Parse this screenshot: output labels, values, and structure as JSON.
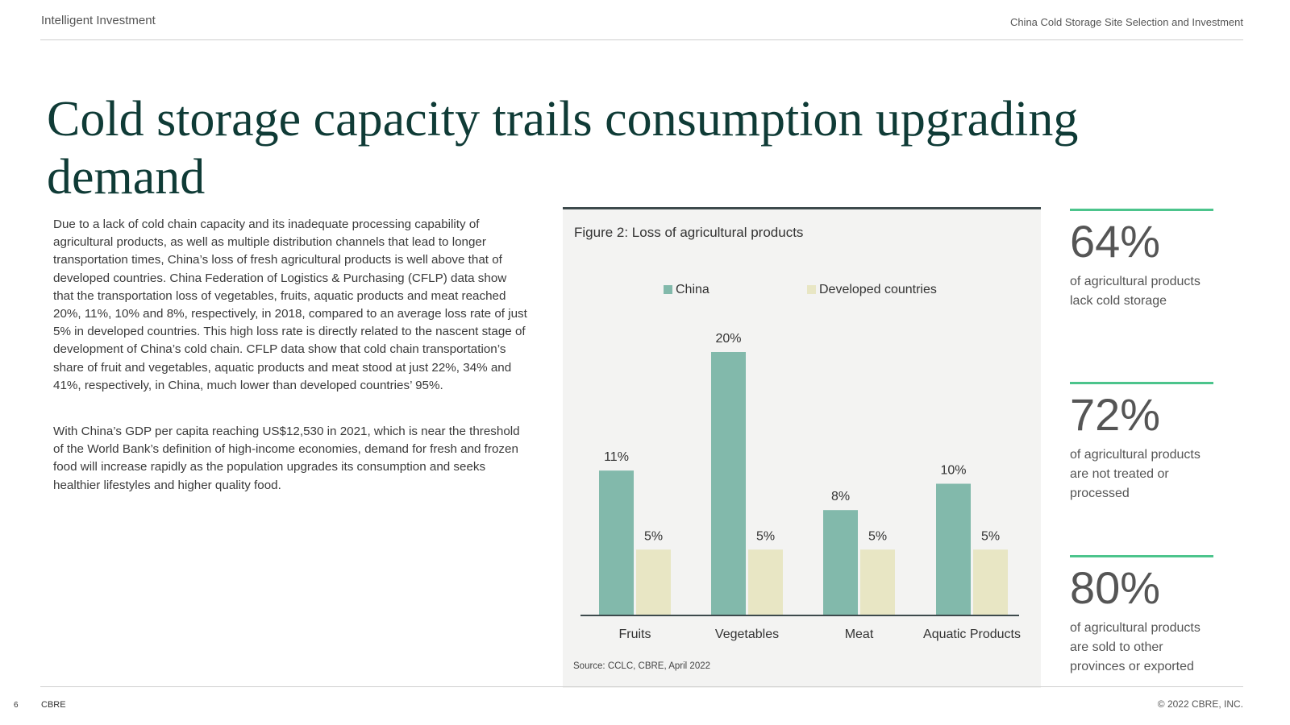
{
  "header": {
    "brand": "Intelligent Investment",
    "report_title": "China Cold Storage Site Selection and Investment"
  },
  "title": "Cold storage capacity trails consumption upgrading demand",
  "body": {
    "paragraph_1": "Due to a lack of cold chain capacity and its inadequate processing capability of agricultural products, as well as multiple distribution channels that lead to longer transportation times, China’s loss of fresh agricultural products is well above that of developed countries. China Federation of Logistics & Purchasing (CFLP) data show that the transportation loss of vegetables, fruits, aquatic products and meat reached 20%, 11%, 10% and 8%, respectively, in 2018, compared to an average loss rate of just 5% in developed countries. This high loss rate is directly related to the nascent stage of development of China’s cold chain. CFLP data show that cold chain transportation’s share of fruit and vegetables, aquatic products and meat stood at just 22%, 34% and 41%, respectively, in China, much lower than developed countries’ 95%.",
    "paragraph_2": "With China’s GDP per capita reaching US$12,530 in 2021, which is near the threshold of the World Bank’s definition of high-income economies, demand for fresh and frozen food will increase rapidly as the population upgrades its consumption and seeks healthier lifestyles and higher quality food."
  },
  "chart_data": {
    "type": "bar",
    "title": "Figure 2: Loss of agricultural products",
    "categories": [
      "Fruits",
      "Vegetables",
      "Meat",
      "Aquatic Products"
    ],
    "series": [
      {
        "name": "China",
        "values": [
          11,
          20,
          8,
          10
        ],
        "labels": [
          "11%",
          "20%",
          "8%",
          "10%"
        ],
        "color": "#82b9ab"
      },
      {
        "name": "Developed countries",
        "values": [
          5,
          5,
          5,
          5
        ],
        "labels": [
          "5%",
          "5%",
          "5%",
          "5%"
        ],
        "color": "#e8e6c4"
      }
    ],
    "ylim": [
      0,
      20
    ],
    "unit": "%",
    "legend": "top",
    "grid": false,
    "source": "Source: CCLC, CBRE, April 2022"
  },
  "stats": [
    {
      "value": "64%",
      "description": "of agricultural products lack cold storage"
    },
    {
      "value": "72%",
      "description": "of agricultural products are not treated or processed"
    },
    {
      "value": "80%",
      "description": "of agricultural products are sold to other provinces or exported"
    }
  ],
  "footer": {
    "page_number": "6",
    "brand": "CBRE",
    "copyright": "© 2022 CBRE, INC."
  },
  "colors": {
    "title": "#0f3b36",
    "accent_rule": "#4cc48c",
    "china_bar": "#82b9ab",
    "developed_bar": "#e8e6c4",
    "figure_bg": "#f3f3f2"
  }
}
